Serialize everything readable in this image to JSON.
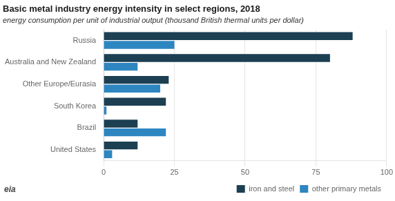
{
  "chart_data": {
    "type": "bar",
    "orientation": "horizontal",
    "title": "Basic metal industry energy intensity in select regions, 2018",
    "subtitle": "energy consumption per unit of industrial output (thousand British thermal units per dollar)",
    "annotations": [
      "eia"
    ],
    "categories": [
      "Russia",
      "Australia and New Zealand",
      "Other Europe/Eurasia",
      "South Korea",
      "Brazil",
      "United States"
    ],
    "series": [
      {
        "name": "iron and steel",
        "color": "#1c3f52",
        "values": [
          88,
          80,
          23,
          22,
          12,
          12
        ]
      },
      {
        "name": "other primary metals",
        "color": "#2e86c1",
        "values": [
          25,
          12,
          20,
          1,
          22,
          3
        ]
      }
    ],
    "xlim": [
      0,
      100
    ],
    "xticks": [
      0,
      25,
      50,
      75,
      100
    ],
    "grid": true,
    "legend": "lower right"
  }
}
